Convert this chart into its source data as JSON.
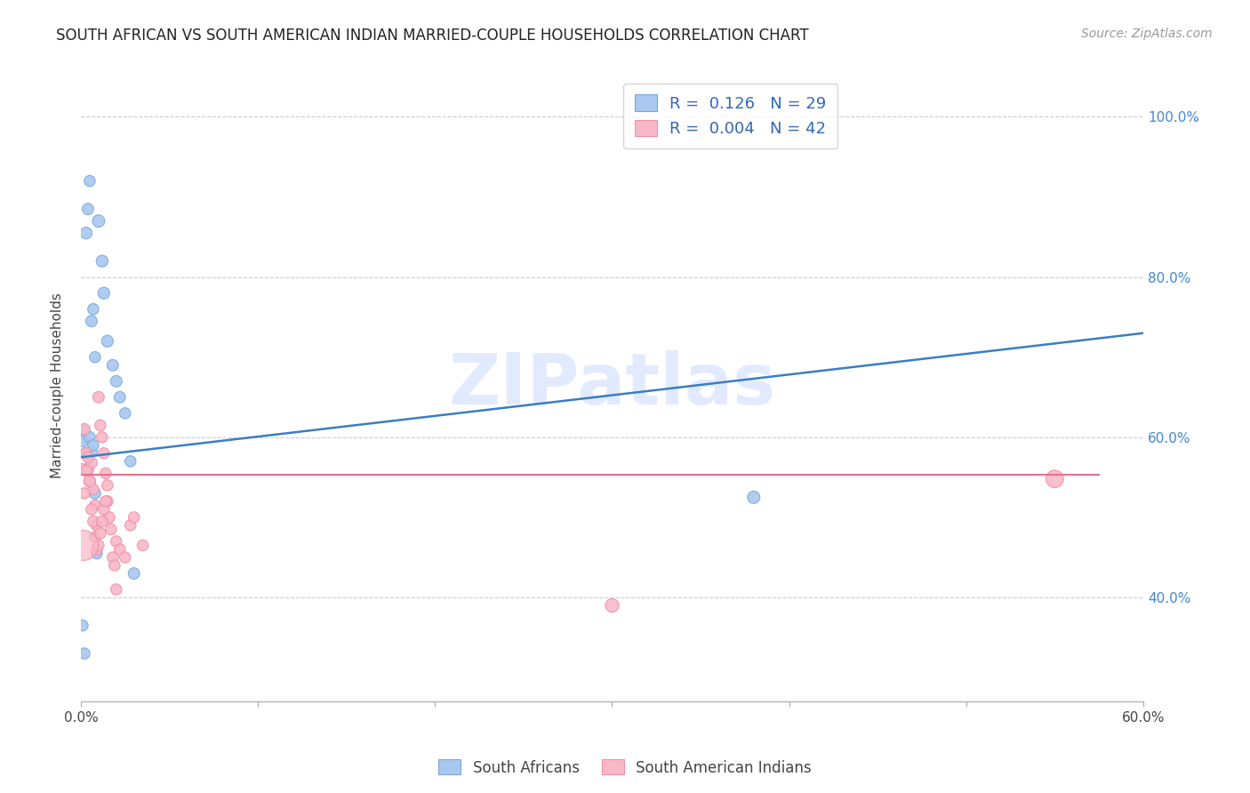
{
  "title": "SOUTH AFRICAN VS SOUTH AMERICAN INDIAN MARRIED-COUPLE HOUSEHOLDS CORRELATION CHART",
  "source": "Source: ZipAtlas.com",
  "ylabel": "Married-couple Households",
  "xlim": [
    0.0,
    0.6
  ],
  "ylim": [
    0.27,
    1.06
  ],
  "blue_color": "#A8C8F0",
  "pink_color": "#F8B8C8",
  "blue_edge_color": "#7AAAD8",
  "pink_edge_color": "#F090A8",
  "blue_line_color": "#3A7EC4",
  "pink_line_color": "#E87090",
  "watermark_color": "#D0DCFF",
  "blue_line_x": [
    0.0,
    0.6
  ],
  "blue_line_y": [
    0.575,
    0.73
  ],
  "pink_line_x": [
    0.0,
    0.575
  ],
  "pink_line_y": [
    0.553,
    0.553
  ],
  "south_african_x": [
    0.001,
    0.002,
    0.003,
    0.004,
    0.005,
    0.006,
    0.007,
    0.008,
    0.009,
    0.01,
    0.012,
    0.013,
    0.015,
    0.018,
    0.02,
    0.022,
    0.025,
    0.028,
    0.001,
    0.002,
    0.003,
    0.004,
    0.005,
    0.006,
    0.007,
    0.008,
    0.009,
    0.38,
    0.03
  ],
  "south_african_y": [
    0.595,
    0.608,
    0.58,
    0.56,
    0.6,
    0.582,
    0.59,
    0.53,
    0.49,
    0.87,
    0.82,
    0.78,
    0.72,
    0.69,
    0.67,
    0.65,
    0.63,
    0.57,
    0.365,
    0.33,
    0.855,
    0.885,
    0.92,
    0.745,
    0.76,
    0.7,
    0.455,
    0.525,
    0.43
  ],
  "south_african_sizes": [
    80,
    80,
    90,
    80,
    85,
    85,
    80,
    85,
    80,
    100,
    90,
    90,
    90,
    85,
    85,
    85,
    80,
    80,
    80,
    80,
    90,
    85,
    80,
    85,
    80,
    80,
    80,
    100,
    85
  ],
  "south_american_x": [
    0.001,
    0.002,
    0.003,
    0.004,
    0.005,
    0.006,
    0.007,
    0.008,
    0.009,
    0.01,
    0.011,
    0.012,
    0.013,
    0.014,
    0.015,
    0.016,
    0.017,
    0.018,
    0.019,
    0.02,
    0.002,
    0.003,
    0.004,
    0.005,
    0.006,
    0.007,
    0.008,
    0.009,
    0.01,
    0.011,
    0.012,
    0.013,
    0.014,
    0.015,
    0.02,
    0.022,
    0.025,
    0.028,
    0.03,
    0.035,
    0.3,
    0.55
  ],
  "south_american_y": [
    0.56,
    0.61,
    0.58,
    0.56,
    0.545,
    0.568,
    0.535,
    0.515,
    0.49,
    0.65,
    0.615,
    0.6,
    0.58,
    0.555,
    0.52,
    0.5,
    0.485,
    0.45,
    0.44,
    0.41,
    0.53,
    0.558,
    0.575,
    0.545,
    0.51,
    0.495,
    0.475,
    0.46,
    0.465,
    0.48,
    0.495,
    0.51,
    0.52,
    0.54,
    0.47,
    0.46,
    0.45,
    0.49,
    0.5,
    0.465,
    0.39,
    0.548
  ],
  "south_american_sizes": [
    80,
    85,
    80,
    85,
    90,
    85,
    80,
    80,
    80,
    85,
    80,
    80,
    80,
    80,
    80,
    85,
    80,
    80,
    80,
    80,
    80,
    80,
    80,
    85,
    80,
    80,
    80,
    80,
    80,
    80,
    80,
    80,
    80,
    80,
    80,
    80,
    80,
    80,
    80,
    80,
    120,
    200
  ],
  "x_ticks": [
    0.0,
    0.1,
    0.2,
    0.3,
    0.4,
    0.5,
    0.6
  ],
  "x_tick_labels_show": [
    "0.0%",
    "",
    "",
    "",
    "",
    "",
    "60.0%"
  ],
  "y_ticks": [
    0.4,
    0.6,
    0.8,
    1.0
  ],
  "y_tick_labels": [
    "40.0%",
    "60.0%",
    "80.0%",
    "100.0%"
  ]
}
